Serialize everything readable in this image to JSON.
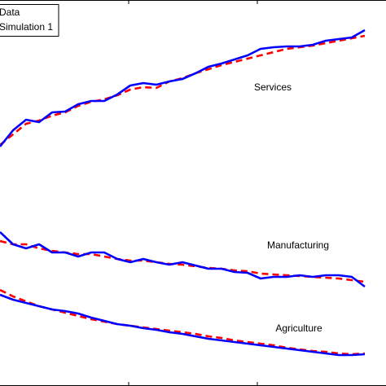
{
  "chart_data": {
    "type": "line",
    "x": [
      0,
      1,
      2,
      3,
      4,
      5,
      6,
      7,
      8,
      9,
      10,
      11,
      12,
      13,
      14,
      15,
      16,
      17,
      18,
      19,
      20,
      21,
      22,
      23,
      24,
      25,
      26,
      27,
      28
    ],
    "xlim": [
      0,
      29.625
    ],
    "ylim": [
      0,
      474
    ],
    "legend": [
      {
        "name": "Data",
        "color": "#0000ff",
        "dashed": false
      },
      {
        "name": "Simulation 1",
        "color": "#ff0000",
        "dashed": true
      }
    ],
    "sectors": [
      {
        "name": "Services",
        "data": [
          294,
          314,
          327,
          324,
          336,
          337,
          346,
          350,
          350,
          358,
          369,
          372,
          370,
          374,
          377,
          384,
          392,
          396,
          401,
          406,
          414,
          416,
          417,
          417,
          419,
          424,
          426,
          428,
          437
        ],
        "simulation": [
          296,
          309,
          322,
          326,
          332,
          336,
          344,
          349,
          352,
          357,
          364,
          367,
          366,
          374,
          378,
          384,
          389,
          394,
          398,
          402,
          406,
          410,
          414,
          416,
          418,
          421,
          424,
          427,
          430
        ]
      },
      {
        "name": "Manufacturing",
        "data": [
          189,
          174,
          169,
          174,
          164,
          164,
          159,
          164,
          164,
          156,
          152,
          156,
          152,
          149,
          152,
          148,
          144,
          144,
          140,
          139,
          132,
          134,
          134,
          136,
          134,
          136,
          136,
          134,
          122
        ],
        "simulation": [
          178,
          174,
          174,
          169,
          166,
          164,
          162,
          162,
          159,
          156,
          154,
          154,
          152,
          150,
          149,
          147,
          145,
          144,
          142,
          141,
          138,
          137,
          136,
          135,
          134,
          133,
          132,
          130,
          128
        ]
      },
      {
        "name": "Agriculture",
        "data": [
          112,
          106,
          102,
          98,
          94,
          92,
          89,
          84,
          80,
          76,
          74,
          71,
          69,
          66,
          64,
          61,
          58,
          56,
          54,
          52,
          50,
          48,
          46,
          44,
          42,
          40,
          38,
          38,
          39
        ],
        "simulation": [
          118,
          110,
          104,
          98,
          94,
          90,
          86,
          82,
          79,
          76,
          74,
          72,
          70,
          68,
          66,
          64,
          61,
          59,
          56,
          54,
          52,
          50,
          47,
          45,
          43,
          42,
          40,
          39,
          40
        ]
      }
    ]
  }
}
